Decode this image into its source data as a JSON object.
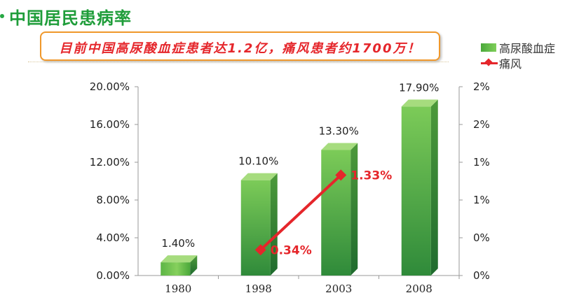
{
  "page": {
    "title": "中国居民患病率",
    "banner": "目前中国高尿酸血症患者达1.2亿，痛风患者约1700万！"
  },
  "chart_data": {
    "type": "bar",
    "categories": [
      "1980",
      "1998",
      "2003",
      "2008"
    ],
    "series": [
      {
        "name": "高尿酸血症",
        "type": "bar",
        "axis": "left",
        "values": [
          1.4,
          10.1,
          13.3,
          17.9
        ],
        "labels": [
          "1.40%",
          "10.10%",
          "13.30%",
          "17.90%"
        ]
      },
      {
        "name": "痛风",
        "type": "line",
        "axis": "right",
        "values": [
          null,
          0.34,
          1.33,
          null
        ],
        "labels": [
          "",
          "0.34%",
          "1.33%",
          ""
        ]
      }
    ],
    "left_axis": {
      "ticks": [
        "0.00%",
        "4.00%",
        "8.00%",
        "12.00%",
        "16.00%",
        "20.00%"
      ],
      "ylim": [
        0,
        20
      ]
    },
    "right_axis": {
      "ticks": [
        "0%",
        "0%",
        "1%",
        "1%",
        "2%",
        "2%"
      ],
      "ylim": [
        0,
        2.5
      ]
    },
    "legend_position": "top-right",
    "colors": {
      "bar": "#4aa83a",
      "line": "#e5262b",
      "title": "#1f9d3a",
      "banner_border": "#f0982b"
    }
  }
}
